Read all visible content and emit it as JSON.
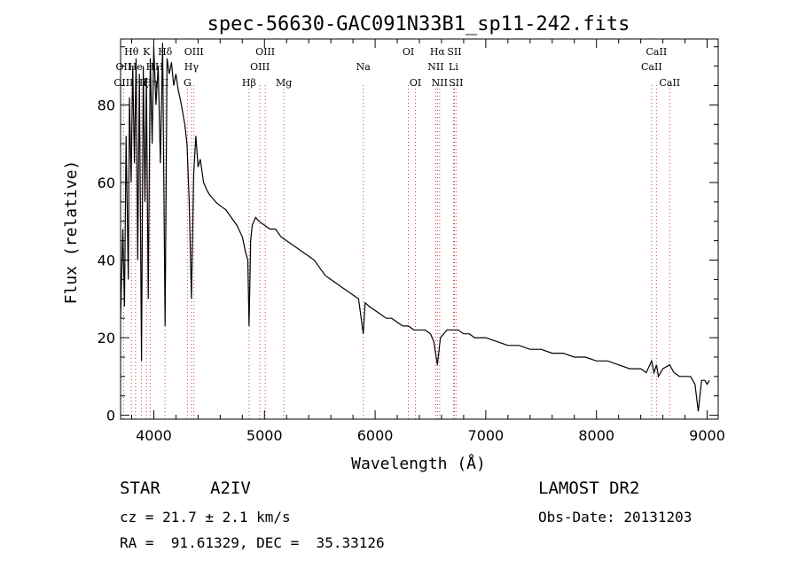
{
  "chart_data": {
    "type": "line",
    "title": "spec-56630-GAC091N33B1_sp11-242.fits",
    "xlabel": "Wavelength (Å)",
    "ylabel": "Flux (relative)",
    "xlim": [
      3700,
      9100
    ],
    "ylim": [
      -1,
      97
    ],
    "grid": false,
    "x_ticks": [
      4000,
      5000,
      6000,
      7000,
      8000,
      9000
    ],
    "y_ticks": [
      0,
      20,
      40,
      60,
      80
    ],
    "x_tick_labels": [
      "4000",
      "5000",
      "6000",
      "7000",
      "8000",
      "9000"
    ],
    "y_tick_labels": [
      "0",
      "20",
      "40",
      "60",
      "80"
    ],
    "series": [
      {
        "x": [
          3700,
          3720,
          3735,
          3750,
          3770,
          3780,
          3795,
          3810,
          3825,
          3840,
          3855,
          3870,
          3889,
          3905,
          3920,
          3933,
          3950,
          3968,
          3985,
          4000,
          4020,
          4040,
          4060,
          4080,
          4102,
          4120,
          4140,
          4160,
          4180,
          4200,
          4220,
          4250,
          4280,
          4300,
          4320,
          4340,
          4360,
          4380,
          4400,
          4420,
          4450,
          4480,
          4500,
          4530,
          4560,
          4600,
          4650,
          4700,
          4750,
          4800,
          4830,
          4850,
          4861,
          4875,
          4890,
          4920,
          4950,
          5000,
          5050,
          5100,
          5150,
          5200,
          5250,
          5300,
          5350,
          5400,
          5450,
          5500,
          5550,
          5600,
          5650,
          5700,
          5750,
          5800,
          5850,
          5893,
          5910,
          5950,
          6000,
          6050,
          6100,
          6150,
          6200,
          6250,
          6300,
          6350,
          6400,
          6450,
          6500,
          6530,
          6563,
          6590,
          6620,
          6650,
          6700,
          6750,
          6800,
          6850,
          6900,
          6950,
          7000,
          7100,
          7200,
          7300,
          7400,
          7500,
          7600,
          7700,
          7800,
          7900,
          8000,
          8100,
          8200,
          8300,
          8400,
          8450,
          8498,
          8520,
          8542,
          8560,
          8600,
          8662,
          8700,
          8750,
          8800,
          8850,
          8870,
          8890,
          8920,
          8950,
          8980,
          9000,
          9020
        ],
        "y": [
          25,
          48,
          28,
          72,
          35,
          82,
          60,
          90,
          65,
          92,
          40,
          88,
          14,
          90,
          55,
          87,
          30,
          92,
          70,
          95,
          80,
          90,
          65,
          96,
          23,
          92,
          88,
          91,
          85,
          88,
          84,
          80,
          75,
          70,
          55,
          30,
          62,
          72,
          64,
          66,
          60,
          58,
          57,
          56,
          55,
          54,
          53,
          51,
          49,
          46,
          42,
          40,
          23,
          45,
          49,
          51,
          50,
          49,
          48,
          48,
          46,
          45,
          44,
          43,
          42,
          41,
          40,
          38,
          36,
          35,
          34,
          33,
          32,
          31,
          30,
          21,
          29,
          28,
          27,
          26,
          25,
          25,
          24,
          23,
          23,
          22,
          22,
          22,
          21,
          19,
          13,
          20,
          21,
          22,
          22,
          22,
          21,
          21,
          20,
          20,
          20,
          19,
          18,
          18,
          17,
          17,
          16,
          16,
          15,
          15,
          14,
          14,
          13,
          12,
          12,
          11,
          14,
          11,
          13,
          10,
          12,
          13,
          11,
          10,
          10,
          10,
          9,
          8,
          1,
          9,
          9,
          8,
          9
        ]
      }
    ],
    "annotations": [
      {
        "label": "Hθ",
        "x": 3798,
        "row": 1
      },
      {
        "label": "OII",
        "x": 3727,
        "row": 2
      },
      {
        "label": "OIII",
        "x": 3727,
        "row": 3
      },
      {
        "label": "He",
        "x": 3835,
        "row": 2
      },
      {
        "label": "Hζ",
        "x": 3889,
        "row": 3
      },
      {
        "label": "K",
        "x": 3934,
        "row": 1
      },
      {
        "label": "H",
        "x": 3968,
        "row": 2
      },
      {
        "label": "Hη",
        "x": 3970,
        "row": 3
      },
      {
        "label": "Hδ",
        "x": 4102,
        "row": 1
      },
      {
        "label": "H",
        "x": 4050,
        "row": 2
      },
      {
        "label": "II",
        "x": 4100,
        "row": 3
      },
      {
        "label": "OIII",
        "x": 4363,
        "row": 1
      },
      {
        "label": "Hγ",
        "x": 4340,
        "row": 2
      },
      {
        "label": "G",
        "x": 4304,
        "row": 3
      },
      {
        "label": "Hβ",
        "x": 4861,
        "row": 3
      },
      {
        "label": "OIII",
        "x": 5007,
        "row": 1
      },
      {
        "label": "OIII",
        "x": 4959,
        "row": 2
      },
      {
        "label": "Mg",
        "x": 5175,
        "row": 3
      },
      {
        "label": "Na",
        "x": 5893,
        "row": 2
      },
      {
        "label": "OI",
        "x": 6300,
        "row": 1
      },
      {
        "label": "OI",
        "x": 6364,
        "row": 3
      },
      {
        "label": "Hα",
        "x": 6563,
        "row": 1
      },
      {
        "label": "SII",
        "x": 6716,
        "row": 1
      },
      {
        "label": "NII",
        "x": 6548,
        "row": 2
      },
      {
        "label": "Li",
        "x": 6708,
        "row": 2
      },
      {
        "label": "NII",
        "x": 6583,
        "row": 3
      },
      {
        "label": "SII",
        "x": 6731,
        "row": 3
      },
      {
        "label": "CaII",
        "x": 8542,
        "row": 1
      },
      {
        "label": "CaII",
        "x": 8498,
        "row": 2
      },
      {
        "label": "CaII",
        "x": 8662,
        "row": 3
      }
    ],
    "line_markers": [
      3727,
      3798,
      3835,
      3889,
      3934,
      3968,
      4102,
      4304,
      4340,
      4363,
      4861,
      4959,
      5007,
      5175,
      5893,
      6300,
      6364,
      6548,
      6563,
      6583,
      6708,
      6716,
      6731,
      8498,
      8542,
      8662
    ]
  },
  "info": {
    "object_class": "STAR",
    "subclass": "A2IV",
    "survey": "LAMOST DR2",
    "cz": "cz = 21.7 ± 2.1 km/s",
    "obs_date": "Obs-Date: 20131203",
    "radec": "RA =  91.61329, DEC =  35.33126"
  }
}
